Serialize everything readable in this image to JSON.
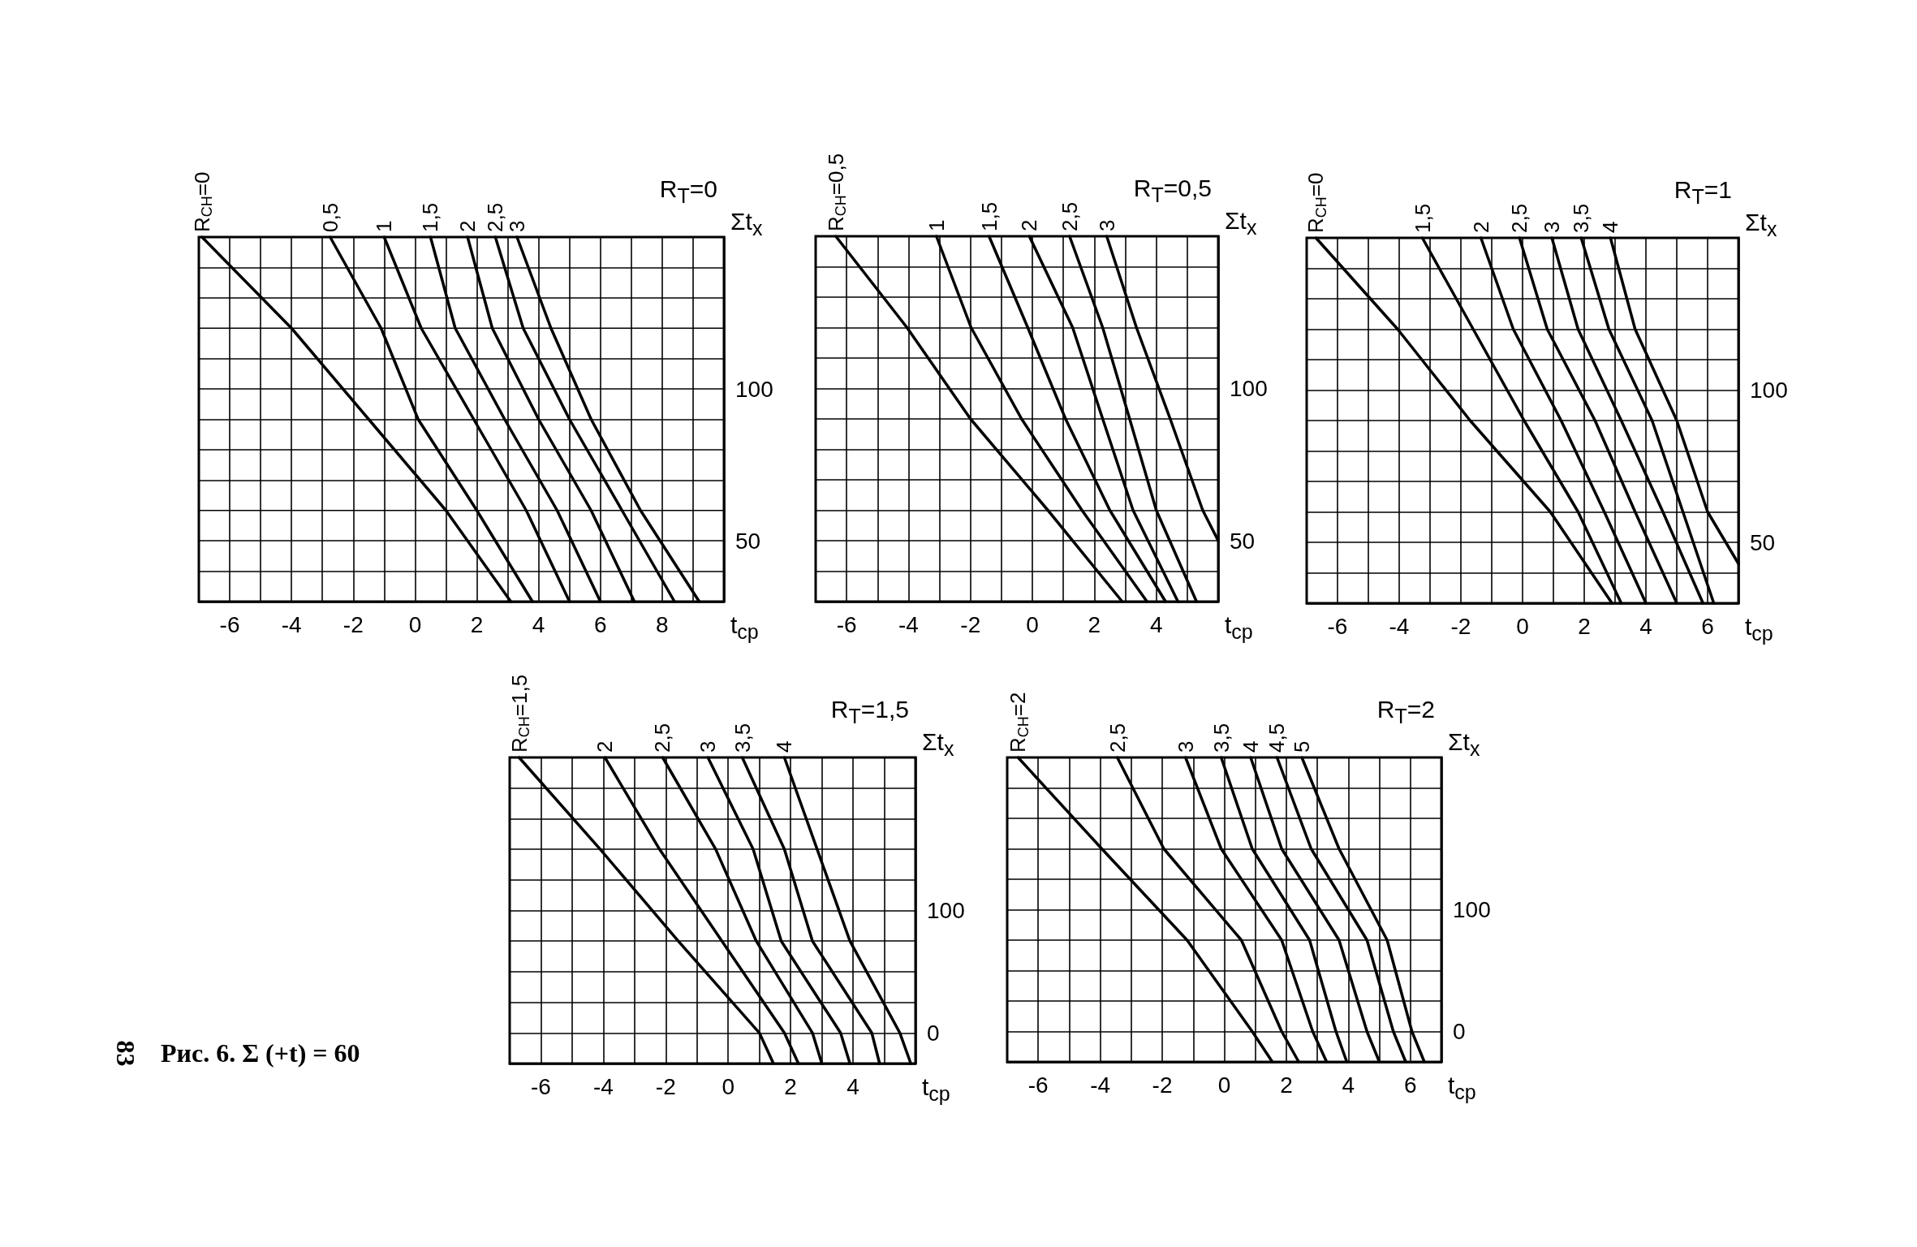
{
  "chart_data": [
    {
      "type": "line",
      "xlabel": "t$_{ср}$",
      "ylabel": "Σt$_{x}$",
      "annotations": [
        "R$_{T}$=0"
      ],
      "grid": true,
      "xlim": [
        -7,
        10
      ],
      "ylim": [
        30,
        150
      ],
      "xticks": [
        {
          "value": -7,
          "label": null
        },
        -6,
        {
          "value": -5,
          "label": null
        },
        -4,
        {
          "value": -3,
          "label": null
        },
        -2,
        {
          "value": -1,
          "label": null
        },
        0,
        {
          "value": 1,
          "label": null
        },
        2,
        {
          "value": 3,
          "label": null
        },
        4,
        {
          "value": 5,
          "label": null
        },
        6,
        {
          "value": 7,
          "label": null
        },
        8,
        {
          "value": 9,
          "label": null
        },
        {
          "value": 10,
          "label": null
        }
      ],
      "yticks": [
        {
          "value": 30,
          "label": null
        },
        {
          "value": 40,
          "label": null
        },
        50,
        {
          "value": 60,
          "label": null
        },
        {
          "value": 70,
          "label": null
        },
        {
          "value": 80,
          "label": null
        },
        {
          "value": 90,
          "label": null
        },
        100,
        {
          "value": 110,
          "label": null
        },
        {
          "value": 120,
          "label": null
        },
        {
          "value": 130,
          "label": null
        },
        {
          "value": 140,
          "label": null
        },
        {
          "value": 150,
          "label": null
        }
      ],
      "series": [
        {
          "name": "R$_{CH}$=0",
          "color": "#000000",
          "x": [
            -6.9,
            -4,
            -1.5,
            1,
            3.1
          ],
          "values": [
            150,
            120,
            90,
            60,
            30
          ]
        },
        {
          "name": "0,5",
          "color": "#000000",
          "x": [
            -2.75,
            -1.1,
            0.1,
            2.0,
            3.8
          ],
          "values": [
            150,
            120,
            90,
            60,
            30
          ]
        },
        {
          "name": "1",
          "color": "#000000",
          "x": [
            -1.0,
            0.2,
            1.9,
            3.6,
            5.0
          ],
          "values": [
            150,
            120,
            90,
            60,
            30
          ]
        },
        {
          "name": "1,5",
          "color": "#000000",
          "x": [
            0.5,
            1.3,
            2.9,
            4.6,
            6.0
          ],
          "values": [
            150,
            120,
            90,
            60,
            30
          ]
        },
        {
          "name": "2",
          "color": "#000000",
          "x": [
            1.7,
            2.5,
            4.0,
            5.7,
            7.1
          ],
          "values": [
            150,
            120,
            90,
            60,
            30
          ]
        },
        {
          "name": "2,5",
          "color": "#000000",
          "x": [
            2.6,
            3.5,
            5.0,
            6.7,
            8.4
          ],
          "values": [
            150,
            120,
            90,
            60,
            30
          ]
        },
        {
          "name": "3",
          "color": "#000000",
          "x": [
            3.3,
            4.4,
            5.7,
            7.3,
            9.2
          ],
          "values": [
            150,
            120,
            90,
            60,
            30
          ]
        }
      ]
    },
    {
      "type": "line",
      "xlabel": "t$_{ср}$",
      "ylabel": "Σt$_{x}$",
      "annotations": [
        "R$_{T}$=0,5"
      ],
      "grid": true,
      "xlim": [
        -7,
        6
      ],
      "ylim": [
        30,
        150
      ],
      "xticks": [
        {
          "value": -7,
          "label": null
        },
        -6,
        {
          "value": -5,
          "label": null
        },
        -4,
        {
          "value": -3,
          "label": null
        },
        -2,
        {
          "value": -1,
          "label": null
        },
        0,
        {
          "value": 1,
          "label": null
        },
        2,
        {
          "value": 3,
          "label": null
        },
        4,
        {
          "value": 5,
          "label": null
        },
        {
          "value": 6,
          "label": null
        }
      ],
      "yticks": [
        {
          "value": 30,
          "label": null
        },
        {
          "value": 40,
          "label": null
        },
        50,
        {
          "value": 60,
          "label": null
        },
        {
          "value": 70,
          "label": null
        },
        {
          "value": 80,
          "label": null
        },
        {
          "value": 90,
          "label": null
        },
        100,
        {
          "value": 110,
          "label": null
        },
        {
          "value": 120,
          "label": null
        },
        {
          "value": 130,
          "label": null
        },
        {
          "value": 140,
          "label": null
        },
        {
          "value": 150,
          "label": null
        }
      ],
      "series": [
        {
          "name": "R$_{CH}$=0,5",
          "color": "#000000",
          "x": [
            -6.35,
            -4.05,
            -2.0,
            0.5,
            2.9
          ],
          "values": [
            150,
            120,
            90,
            60,
            30
          ]
        },
        {
          "name": "1",
          "color": "#000000",
          "x": [
            -3.1,
            -1.98,
            -0.35,
            1.6,
            3.7
          ],
          "values": [
            150,
            120,
            90,
            60,
            30
          ]
        },
        {
          "name": "1,5",
          "color": "#000000",
          "x": [
            -1.4,
            -0.15,
            1.07,
            2.5,
            4.3
          ],
          "values": [
            150,
            120,
            90,
            60,
            30
          ]
        },
        {
          "name": "2",
          "color": "#000000",
          "x": [
            -0.1,
            1.3,
            2.27,
            3.25,
            4.7
          ],
          "values": [
            150,
            120,
            90,
            60,
            30
          ]
        },
        {
          "name": "2,5",
          "color": "#000000",
          "x": [
            1.2,
            2.27,
            3.14,
            4.0,
            5.3
          ],
          "values": [
            150,
            120,
            90,
            60,
            30
          ]
        },
        {
          "name": "3",
          "color": "#000000",
          "x": [
            2.4,
            3.36,
            4.45,
            5.5,
            6.0
          ],
          "values": [
            150,
            120,
            90,
            60,
            50
          ]
        }
      ]
    },
    {
      "type": "line",
      "xlabel": "t$_{ср}$",
      "ylabel": "Σt$_{x}$",
      "annotations": [
        "R$_{T}$=1"
      ],
      "grid": true,
      "xlim": [
        -7,
        7
      ],
      "ylim": [
        30,
        150
      ],
      "xticks": [
        {
          "value": -7,
          "label": null
        },
        -6,
        {
          "value": -5,
          "label": null
        },
        -4,
        {
          "value": -3,
          "label": null
        },
        -2,
        {
          "value": -1,
          "label": null
        },
        0,
        {
          "value": 1,
          "label": null
        },
        2,
        {
          "value": 3,
          "label": null
        },
        4,
        {
          "value": 5,
          "label": null
        },
        6,
        {
          "value": 7,
          "label": null
        }
      ],
      "yticks": [
        {
          "value": 30,
          "label": null
        },
        {
          "value": 40,
          "label": null
        },
        50,
        {
          "value": 60,
          "label": null
        },
        {
          "value": 70,
          "label": null
        },
        {
          "value": 80,
          "label": null
        },
        {
          "value": 90,
          "label": null
        },
        100,
        {
          "value": 110,
          "label": null
        },
        {
          "value": 120,
          "label": null
        },
        {
          "value": 130,
          "label": null
        },
        {
          "value": 140,
          "label": null
        },
        {
          "value": 150,
          "label": null
        }
      ],
      "series": [
        {
          "name": "R$_{CH}$=0",
          "color": "#000000",
          "x": [
            -6.7,
            -4.05,
            -1.7,
            0.9,
            2.9
          ],
          "values": [
            150,
            120,
            90,
            60,
            30
          ]
        },
        {
          "name": "1,5",
          "color": "#000000",
          "x": [
            -3.25,
            -1.6,
            0.05,
            1.8,
            3.2
          ],
          "values": [
            150,
            120,
            90,
            60,
            30
          ]
        },
        {
          "name": "2",
          "color": "#000000",
          "x": [
            -1.35,
            -0.3,
            1.25,
            2.65,
            4.0
          ],
          "values": [
            150,
            120,
            90,
            60,
            30
          ]
        },
        {
          "name": "2,5",
          "color": "#000000",
          "x": [
            -0.1,
            0.8,
            2.35,
            3.65,
            5.0
          ],
          "values": [
            150,
            120,
            90,
            60,
            30
          ]
        },
        {
          "name": "3",
          "color": "#000000",
          "x": [
            0.95,
            1.8,
            3.2,
            4.55,
            5.85
          ],
          "values": [
            150,
            120,
            90,
            60,
            30
          ]
        },
        {
          "name": "3,5",
          "color": "#000000",
          "x": [
            1.9,
            2.8,
            4.2,
            5.2,
            6.2
          ],
          "values": [
            150,
            120,
            90,
            60,
            30
          ]
        },
        {
          "name": "4",
          "color": "#000000",
          "x": [
            2.85,
            3.65,
            5.0,
            6.0,
            7.0
          ],
          "values": [
            150,
            120,
            90,
            60,
            43
          ]
        }
      ]
    },
    {
      "type": "line",
      "xlabel": "t$_{ср}$",
      "ylabel": "Σt$_{x}$",
      "annotations": [
        "R$_{T}$=1,5",
        "Рис. 6. Σ (+t) = 60",
        "83"
      ],
      "grid": true,
      "xlim": [
        -7,
        6
      ],
      "ylim": [
        -25,
        225
      ],
      "xticks": [
        {
          "value": -7,
          "label": null
        },
        -6,
        {
          "value": -5,
          "label": null
        },
        -4,
        {
          "value": -3,
          "label": null
        },
        -2,
        {
          "value": -1,
          "label": null
        },
        0,
        {
          "value": 1,
          "label": null
        },
        2,
        {
          "value": 3,
          "label": null
        },
        4,
        {
          "value": 5,
          "label": null
        },
        {
          "value": 6,
          "label": null
        }
      ],
      "yticks": [
        {
          "value": -25,
          "label": null
        },
        0,
        {
          "value": 25,
          "label": null
        },
        {
          "value": 50,
          "label": null
        },
        {
          "value": 75,
          "label": null
        },
        100,
        {
          "value": 125,
          "label": null
        },
        {
          "value": 150,
          "label": null
        },
        {
          "value": 175,
          "label": null
        },
        {
          "value": 200,
          "label": null
        },
        {
          "value": 225,
          "label": null
        }
      ],
      "series": [
        {
          "name": "R$_{CH}$=1,5",
          "color": "#000000",
          "x": [
            -6.7,
            -4.1,
            -1.6,
            1.0,
            1.45
          ],
          "values": [
            225,
            150,
            75,
            0,
            -25
          ]
        },
        {
          "name": "2",
          "color": "#000000",
          "x": [
            -3.95,
            -2.2,
            -0.2,
            1.8,
            2.25
          ],
          "values": [
            225,
            150,
            75,
            0,
            -25
          ]
        },
        {
          "name": "2,5",
          "color": "#000000",
          "x": [
            -2.1,
            -0.4,
            0.9,
            2.7,
            3.0
          ],
          "values": [
            225,
            150,
            75,
            0,
            -25
          ]
        },
        {
          "name": "3",
          "color": "#000000",
          "x": [
            -0.65,
            0.8,
            1.7,
            3.6,
            3.9
          ],
          "values": [
            225,
            150,
            75,
            0,
            -25
          ]
        },
        {
          "name": "3,5",
          "color": "#000000",
          "x": [
            0.45,
            1.8,
            2.7,
            4.6,
            4.85
          ],
          "values": [
            225,
            150,
            75,
            0,
            -25
          ]
        },
        {
          "name": "4",
          "color": "#000000",
          "x": [
            1.8,
            2.85,
            3.9,
            5.5,
            5.85
          ],
          "values": [
            225,
            150,
            75,
            0,
            -25
          ]
        }
      ]
    },
    {
      "type": "line",
      "xlabel": "t$_{ср}$",
      "ylabel": "Σt$_{x}$",
      "annotations": [
        "R$_{T}$=2"
      ],
      "grid": true,
      "xlim": [
        -7,
        7
      ],
      "ylim": [
        -25,
        225
      ],
      "xticks": [
        {
          "value": -7,
          "label": null
        },
        -6,
        {
          "value": -5,
          "label": null
        },
        -4,
        {
          "value": -3,
          "label": null
        },
        -2,
        {
          "value": -1,
          "label": null
        },
        0,
        {
          "value": 1,
          "label": null
        },
        2,
        {
          "value": 3,
          "label": null
        },
        4,
        {
          "value": 5,
          "label": null
        },
        6,
        {
          "value": 7,
          "label": null
        }
      ],
      "yticks": [
        {
          "value": -25,
          "label": null
        },
        0,
        {
          "value": 25,
          "label": null
        },
        {
          "value": 50,
          "label": null
        },
        {
          "value": 75,
          "label": null
        },
        100,
        {
          "value": 125,
          "label": null
        },
        {
          "value": 150,
          "label": null
        },
        {
          "value": 175,
          "label": null
        },
        {
          "value": 200,
          "label": null
        },
        {
          "value": 225,
          "label": null
        }
      ],
      "series": [
        {
          "name": "R$_{CH}$=2",
          "color": "#000000",
          "x": [
            -6.65,
            -3.95,
            -1.2,
            0.9,
            1.55
          ],
          "values": [
            225,
            150,
            75,
            0,
            -25
          ]
        },
        {
          "name": "2,5",
          "color": "#000000",
          "x": [
            -3.45,
            -1.95,
            0.55,
            1.85,
            2.4
          ],
          "values": [
            225,
            150,
            75,
            0,
            -25
          ]
        },
        {
          "name": "3",
          "color": "#000000",
          "x": [
            -1.25,
            -0.1,
            1.85,
            2.85,
            3.3
          ],
          "values": [
            225,
            150,
            75,
            0,
            -25
          ]
        },
        {
          "name": "3,5",
          "color": "#000000",
          "x": [
            -0.1,
            0.9,
            2.75,
            3.6,
            3.95
          ],
          "values": [
            225,
            150,
            75,
            0,
            -25
          ]
        },
        {
          "name": "4",
          "color": "#000000",
          "x": [
            0.85,
            1.85,
            3.7,
            4.6,
            5.0
          ],
          "values": [
            225,
            150,
            75,
            0,
            -25
          ]
        },
        {
          "name": "4,5",
          "color": "#000000",
          "x": [
            1.7,
            2.8,
            4.6,
            5.45,
            5.85
          ],
          "values": [
            225,
            150,
            75,
            0,
            -25
          ]
        },
        {
          "name": "5",
          "color": "#000000",
          "x": [
            2.5,
            3.7,
            5.25,
            6.05,
            6.45
          ],
          "values": [
            225,
            150,
            75,
            0,
            -25
          ]
        }
      ]
    }
  ]
}
